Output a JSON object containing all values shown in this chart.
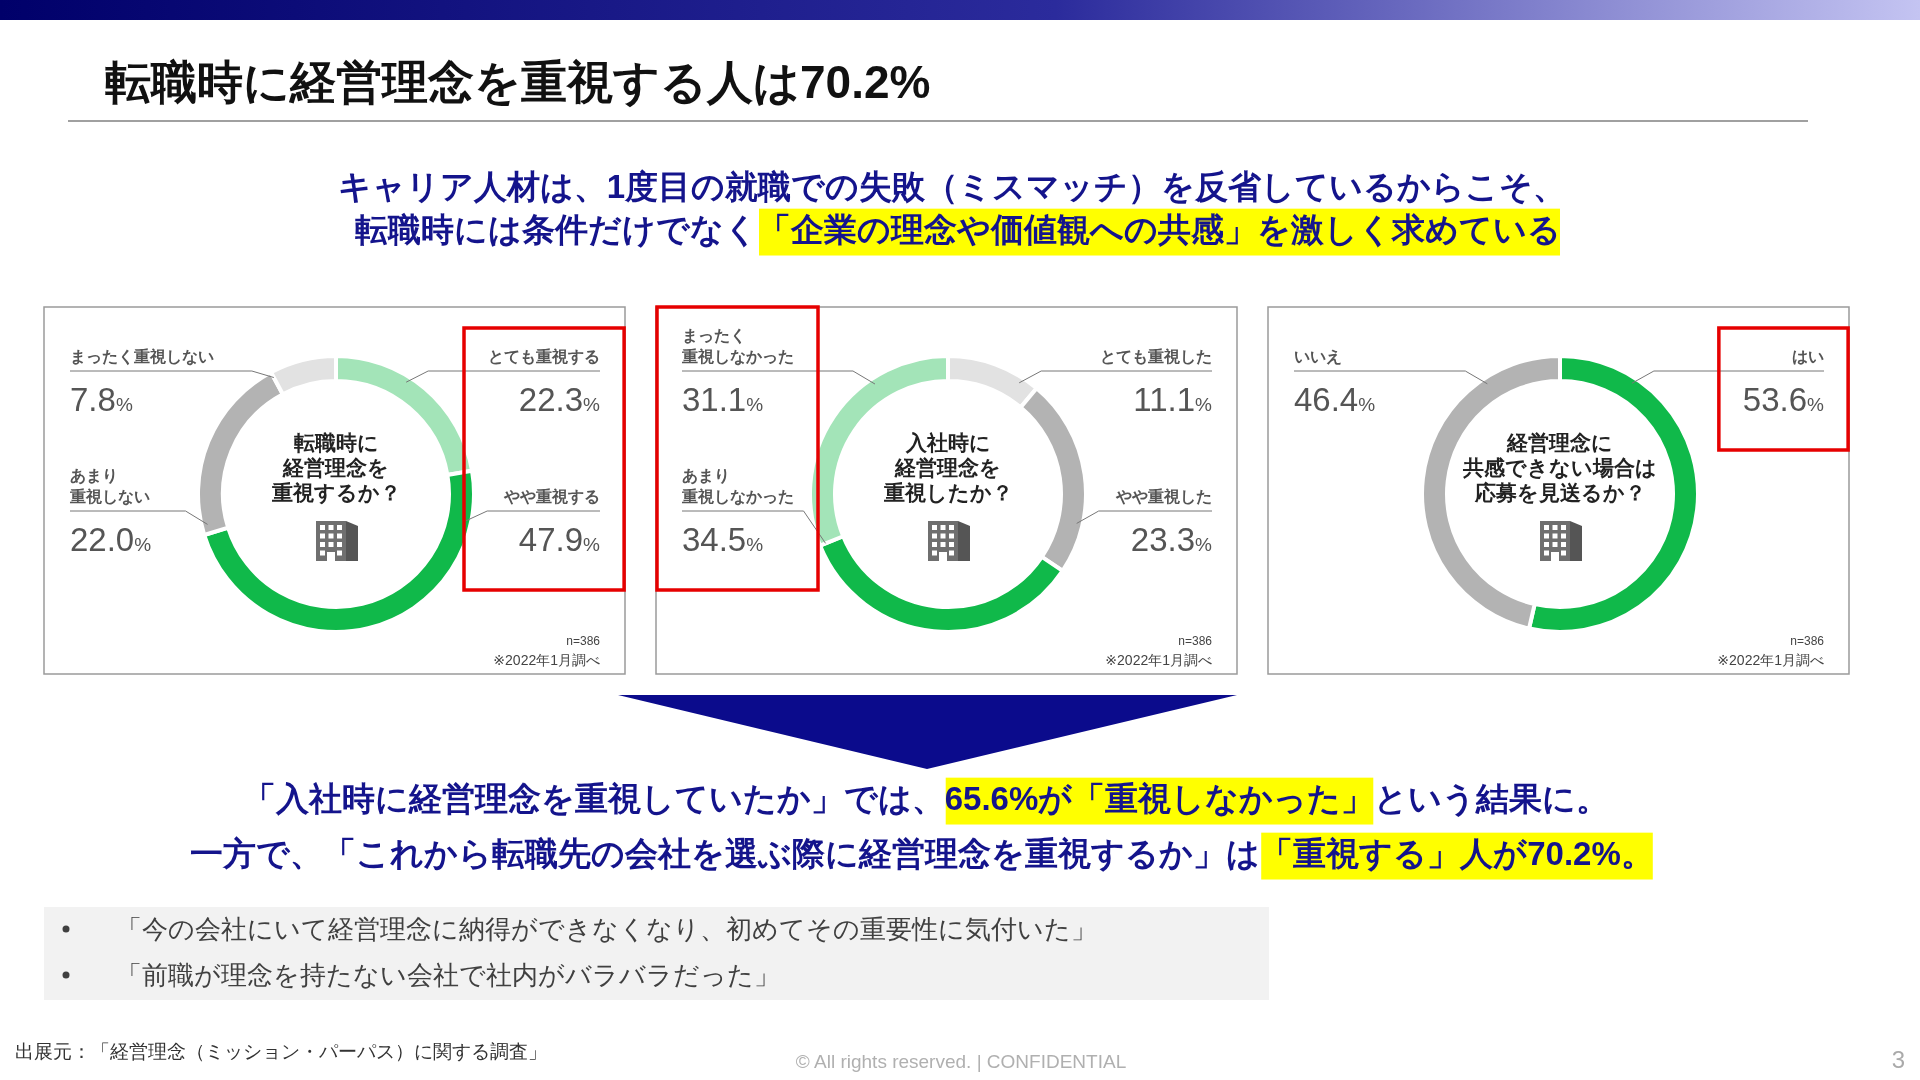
{
  "chart_data": [
    {
      "type": "other",
      "title": "転職時に経営理念を重視する人は70.2%",
      "subtitle": "キャリア人材は、1度目の就職での失敗（ミスマッチ）を反省しているからこそ、",
      "annotations": [
        "転職時には条件だけでなく",
        "「企業の理念や価値観への共感」を激しく求めている"
      ]
    },
    {
      "type": "donut",
      "title": "転職時に経営理念を重視するか？",
      "categories": [
        "とても重視する",
        "やや重視する",
        "あまり重視しない",
        "まったく重視しない"
      ],
      "values": [
        22.3,
        47.9,
        22.0,
        7.8
      ],
      "value_labels": [
        "22.3%",
        "47.9%",
        "22.0%",
        "7.8%"
      ],
      "colors": [
        "#a3e4b8",
        "#10b94a",
        "#b3b3b3",
        "#e2e2e2"
      ],
      "annotations": [
        "n=386",
        "※2022年1月調べ"
      ]
    },
    {
      "type": "donut",
      "title": "入社時に経営理念を重視したか？",
      "categories": [
        "とても重視した",
        "やや重視した",
        "あまり重視しなかった",
        "まったく重視しなかった"
      ],
      "values": [
        11.1,
        23.3,
        34.5,
        31.1
      ],
      "value_labels": [
        "11.1%",
        "23.3%",
        "34.5%",
        "31.1%"
      ],
      "colors": [
        "#e2e2e2",
        "#b3b3b3",
        "#10b94a",
        "#a3e4b8"
      ],
      "annotations": [
        "n=386",
        "※2022年1月調べ"
      ]
    },
    {
      "type": "donut",
      "title": "経営理念に共感できない場合は応募を見送るか？",
      "categories": [
        "はい",
        "いいえ"
      ],
      "values": [
        53.6,
        46.4
      ],
      "value_labels": [
        "53.6%",
        "46.4%"
      ],
      "colors": [
        "#10b94a",
        "#b3b3b3"
      ],
      "annotations": [
        "n=386",
        "※2022年1月調べ"
      ]
    },
    {
      "type": "other",
      "annotations": [
        "「入社時に経営理念を重視していたか」では、",
        "65.6%が「重視しなかった」",
        "という結果に。",
        "一方で、「これから転職先の会社を選ぶ際に経営理念を重視するか」は",
        "「重視する」人が70.2%。",
        "「今の会社にいて経営理念に納得ができなくなり、初めてその重要性に気付いた」",
        "「前職が理念を持たない会社で社内がバラバラだった」",
        "出展元：「経営理念（ミッション・パーパス）に関する調査」",
        "© All rights reserved. | CONFIDENTIAL",
        "3"
      ]
    }
  ]
}
